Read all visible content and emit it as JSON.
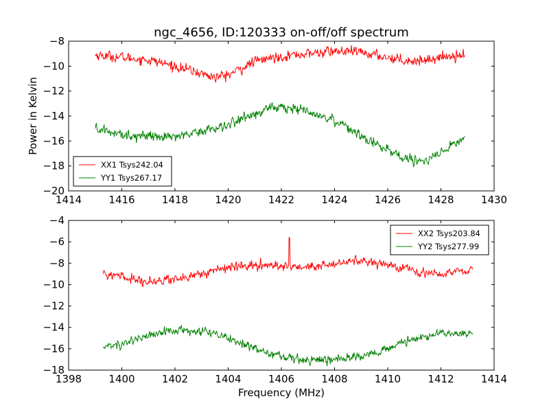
{
  "figure": {
    "title": "ngc_4656, ID:120333 on-off/off spectrum",
    "ylabel": "Power in Kelvin",
    "xlabel": "Frequency (MHz)"
  },
  "chart_data": [
    {
      "type": "line",
      "xlim": [
        1414,
        1430
      ],
      "ylim": [
        -20,
        -8
      ],
      "xticks": [
        1414,
        1416,
        1418,
        1420,
        1422,
        1424,
        1426,
        1428,
        1430
      ],
      "yticks": [
        -20,
        -18,
        -16,
        -14,
        -12,
        -10,
        -8
      ],
      "legend_position": "lower-left",
      "series": [
        {
          "name": "XX1 Tsys242.04",
          "color": "#ff0000",
          "x": [
            1415.0,
            1416.0,
            1417.0,
            1418.0,
            1419.0,
            1419.5,
            1420.0,
            1420.5,
            1421.0,
            1422.0,
            1423.0,
            1424.0,
            1425.0,
            1426.0,
            1427.0,
            1428.0,
            1428.9
          ],
          "y": [
            -9.1,
            -9.3,
            -9.5,
            -10.0,
            -10.6,
            -10.9,
            -10.7,
            -10.2,
            -9.6,
            -9.2,
            -9.0,
            -8.8,
            -8.9,
            -9.3,
            -9.6,
            -9.3,
            -9.0
          ]
        },
        {
          "name": "YY1 Tsys267.17",
          "color": "#008000",
          "x": [
            1415.0,
            1416.0,
            1417.0,
            1418.0,
            1419.0,
            1420.0,
            1421.0,
            1421.5,
            1422.0,
            1423.0,
            1424.0,
            1425.0,
            1426.0,
            1427.0,
            1427.5,
            1428.0,
            1428.9
          ],
          "y": [
            -15.0,
            -15.5,
            -15.6,
            -15.6,
            -15.2,
            -14.7,
            -13.8,
            -13.4,
            -13.3,
            -13.6,
            -14.3,
            -15.5,
            -16.8,
            -17.6,
            -17.6,
            -17.0,
            -15.7
          ]
        }
      ]
    },
    {
      "type": "line",
      "xlim": [
        1398,
        1414
      ],
      "ylim": [
        -18,
        -4
      ],
      "xticks": [
        1398,
        1400,
        1402,
        1404,
        1406,
        1408,
        1410,
        1412,
        1414
      ],
      "yticks": [
        -18,
        -16,
        -14,
        -12,
        -10,
        -8,
        -6,
        -4
      ],
      "legend_position": "upper-right",
      "series": [
        {
          "name": "XX2 Tsys203.84",
          "color": "#ff0000",
          "x": [
            1399.3,
            1400.0,
            1401.0,
            1402.0,
            1403.0,
            1404.0,
            1405.0,
            1406.0,
            1407.0,
            1408.0,
            1409.0,
            1410.0,
            1411.0,
            1412.0,
            1413.2
          ],
          "y": [
            -9.0,
            -9.3,
            -9.7,
            -9.5,
            -9.0,
            -8.4,
            -8.2,
            -8.3,
            -8.4,
            -8.1,
            -7.7,
            -8.1,
            -8.7,
            -9.0,
            -8.6
          ],
          "spike": {
            "x": 1406.3,
            "y": -5.6
          }
        },
        {
          "name": "YY2 Tsys277.99",
          "color": "#008000",
          "x": [
            1399.3,
            1400.0,
            1401.0,
            1402.0,
            1403.0,
            1404.0,
            1405.0,
            1406.0,
            1407.0,
            1408.0,
            1409.0,
            1410.0,
            1411.0,
            1412.0,
            1413.2
          ],
          "y": [
            -15.9,
            -15.5,
            -14.8,
            -14.3,
            -14.4,
            -15.0,
            -16.0,
            -16.8,
            -17.1,
            -17.0,
            -16.7,
            -16.0,
            -15.1,
            -14.6,
            -14.6
          ]
        }
      ]
    }
  ]
}
